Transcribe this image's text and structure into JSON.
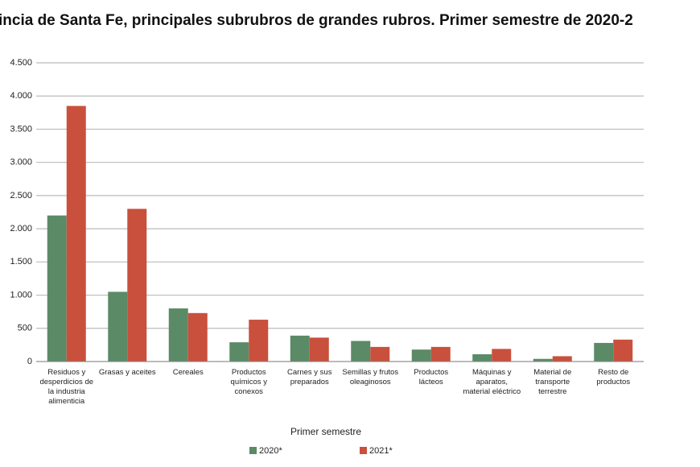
{
  "chart_data": {
    "type": "bar",
    "title": "incia de Santa Fe, principales subrubros de grandes rubros. Primer semestre de 2020-2",
    "x_label": "Primer semestre",
    "categories": [
      "Residuos y desperdicios de la industria alimenticia",
      "Grasas y aceites",
      "Cereales",
      "Productos químicos y conexos",
      "Carnes y sus preparados",
      "Semillas y frutos oleaginosos",
      "Productos lácteos",
      "Máquinas y aparatos, material eléctrico",
      "Material de transporte terrestre",
      "Resto de productos"
    ],
    "series": [
      {
        "name": "2020*",
        "color": "#5b8a67",
        "values": [
          2200,
          1050,
          800,
          290,
          390,
          310,
          180,
          110,
          40,
          280
        ]
      },
      {
        "name": "2021*",
        "color": "#c9503c",
        "values": [
          3850,
          2300,
          730,
          630,
          360,
          220,
          220,
          190,
          80,
          330
        ]
      }
    ],
    "ylim": [
      0,
      4500
    ],
    "yticks": [
      0,
      500,
      {
        "value": 1000,
        "label": "1.000"
      },
      {
        "value": 1500,
        "label": "1.500"
      },
      {
        "value": 2000,
        "label": "2.000"
      },
      {
        "value": 2500,
        "label": "2.500"
      },
      {
        "value": 3000,
        "label": "3.000"
      },
      {
        "value": 3500,
        "label": "3.500"
      },
      {
        "value": 4000,
        "label": "4.000"
      },
      {
        "value": 4500,
        "label": "4.500"
      }
    ],
    "grid": true
  }
}
